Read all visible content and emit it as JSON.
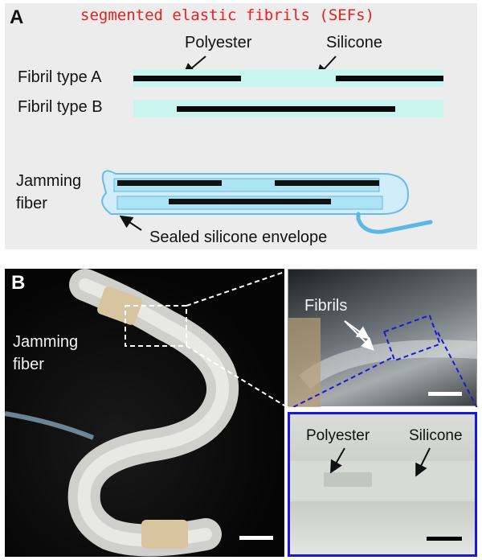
{
  "panel_a": {
    "label": "A",
    "title": "segmented elastic fibrils (SEFs)",
    "callout_polyester": "Polyester",
    "callout_silicone": "Silicone",
    "row_a_label": "Fibril type A",
    "row_b_label": "Fibril type B",
    "jamming_fiber_line1": "Jamming",
    "jamming_fiber_line2": "fiber",
    "envelope_label": "Sealed silicone envelope"
  },
  "panel_b": {
    "label": "B",
    "main_label_line1": "Jamming",
    "main_label_line2": "fiber",
    "zoom1_label": "Fibrils",
    "zoom2_polyester": "Polyester",
    "zoom2_silicone": "Silicone"
  },
  "colors": {
    "title_red": "#e8201f",
    "silicone_cyan": "#c9f5ee",
    "zoom_box_blue": "#1a1ad6"
  }
}
